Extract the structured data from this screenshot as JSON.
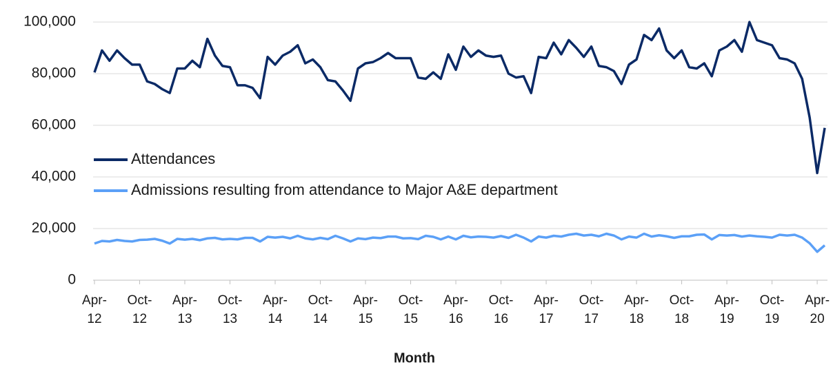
{
  "chart_data": {
    "type": "line",
    "x_label": "Month",
    "categories": [
      "Apr-12",
      null,
      null,
      null,
      null,
      null,
      "Oct-12",
      null,
      null,
      null,
      null,
      null,
      "Apr-13",
      null,
      null,
      null,
      null,
      null,
      "Oct-13",
      null,
      null,
      null,
      null,
      null,
      "Apr-14",
      null,
      null,
      null,
      null,
      null,
      "Oct-14",
      null,
      null,
      null,
      null,
      null,
      "Apr-15",
      null,
      null,
      null,
      null,
      null,
      "Oct-15",
      null,
      null,
      null,
      null,
      null,
      "Apr-16",
      null,
      null,
      null,
      null,
      null,
      "Oct-16",
      null,
      null,
      null,
      null,
      null,
      "Apr-17",
      null,
      null,
      null,
      null,
      null,
      "Oct-17",
      null,
      null,
      null,
      null,
      null,
      "Apr-18",
      null,
      null,
      null,
      null,
      null,
      "Oct-18",
      null,
      null,
      null,
      null,
      null,
      "Apr-19",
      null,
      null,
      null,
      null,
      null,
      "Oct-19",
      null,
      null,
      null,
      null,
      null,
      "Apr-20",
      null
    ],
    "series": [
      {
        "name": "Attendances",
        "color": "#0b2a66",
        "values": [
          80500,
          89000,
          85000,
          89000,
          86000,
          83500,
          83500,
          77000,
          76000,
          74000,
          72500,
          82000,
          82000,
          85000,
          82500,
          93500,
          87000,
          83000,
          82500,
          75500,
          75500,
          74500,
          70500,
          86500,
          83500,
          87000,
          88500,
          91000,
          84000,
          85500,
          82500,
          77500,
          77000,
          73500,
          69500,
          82000,
          84000,
          84500,
          86000,
          88000,
          86000,
          86000,
          86000,
          78500,
          78000,
          80500,
          78000,
          87500,
          81500,
          90500,
          86500,
          89000,
          87000,
          86500,
          87000,
          80000,
          78500,
          79000,
          72500,
          86500,
          86000,
          92000,
          87500,
          93000,
          90000,
          86500,
          90500,
          83000,
          82500,
          81000,
          76000,
          83500,
          85500,
          95000,
          93000,
          97500,
          89000,
          86000,
          89000,
          82500,
          82000,
          84000,
          79000,
          89000,
          90500,
          93000,
          88500,
          100000,
          93000,
          92000,
          91000,
          86000,
          85500,
          84000,
          78000,
          63000,
          41500,
          59000
        ]
      },
      {
        "name": "Admissions resulting from attendance to Major A&E department",
        "color": "#5ba0f7",
        "values": [
          14200,
          15200,
          15000,
          15600,
          15200,
          15000,
          15600,
          15700,
          16000,
          15300,
          14200,
          16000,
          15700,
          16000,
          15500,
          16200,
          16400,
          15800,
          16000,
          15800,
          16400,
          16400,
          15000,
          16800,
          16500,
          16800,
          16200,
          17200,
          16200,
          15800,
          16400,
          15900,
          17200,
          16200,
          15000,
          16200,
          15900,
          16500,
          16300,
          16900,
          16900,
          16200,
          16300,
          15900,
          17200,
          16800,
          15800,
          16900,
          15800,
          17200,
          16600,
          16900,
          16800,
          16500,
          17100,
          16400,
          17600,
          16500,
          15000,
          16900,
          16500,
          17200,
          16900,
          17600,
          18000,
          17300,
          17600,
          17000,
          18000,
          17300,
          15800,
          16900,
          16500,
          18000,
          16900,
          17400,
          17000,
          16400,
          17000,
          17000,
          17600,
          17700,
          15800,
          17500,
          17300,
          17500,
          16900,
          17300,
          17000,
          16800,
          16500,
          17600,
          17300,
          17600,
          16500,
          14300,
          11000,
          13500
        ]
      }
    ],
    "ylim": [
      0,
      100000
    ],
    "yticks": [
      0,
      {
        "value": 20000,
        "label": "20,000"
      },
      {
        "value": 40000,
        "label": "40,000"
      },
      {
        "value": 60000,
        "label": "60,000"
      },
      {
        "value": 80000,
        "label": "80,000"
      },
      {
        "value": 100000,
        "label": "100,000"
      }
    ],
    "grid": true,
    "legend": "left"
  }
}
